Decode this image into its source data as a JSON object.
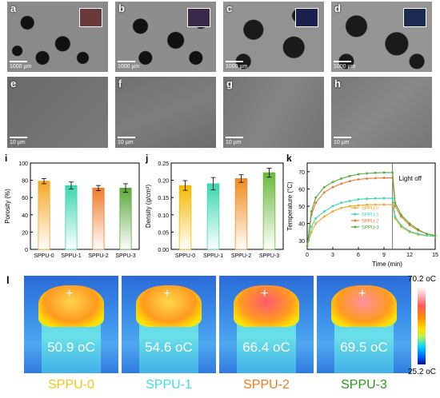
{
  "sem_panels": [
    {
      "label": "a",
      "scale": "1000 µm",
      "inset_color": "#6a3a3a"
    },
    {
      "label": "b",
      "scale": "1000 µm",
      "inset_color": "#3a2a4a"
    },
    {
      "label": "c",
      "scale": "1000 µm",
      "inset_color": "#1a2050"
    },
    {
      "label": "d",
      "scale": "1000 µm",
      "inset_color": "#1a2a50"
    },
    {
      "label": "e",
      "scale": "10 µm"
    },
    {
      "label": "f",
      "scale": "10 µm"
    },
    {
      "label": "g",
      "scale": "10 µm"
    },
    {
      "label": "h",
      "scale": "10 µm"
    }
  ],
  "panel_labels": {
    "i": "i",
    "j": "j",
    "k": "k",
    "l": "l"
  },
  "chart_data": [
    {
      "type": "bar",
      "panel": "i",
      "categories": [
        "SPPU-0",
        "SPPU-1",
        "SPPU-2",
        "SPPU-3"
      ],
      "values": [
        79,
        74,
        71,
        71
      ],
      "errors": [
        3,
        4,
        3,
        5
      ],
      "colors": [
        "#f5a623",
        "#3ad6b0",
        "#f07a2a",
        "#5aa83a"
      ],
      "ylabel": "Porosity (%)",
      "ylim": [
        0,
        100
      ],
      "yticks": [
        "0",
        "20",
        "40",
        "60",
        "80",
        "100"
      ]
    },
    {
      "type": "bar",
      "panel": "j",
      "categories": [
        "SPPU-0",
        "SPPU-1",
        "SPPU-2",
        "SPPU-3"
      ],
      "values": [
        0.185,
        0.19,
        0.205,
        0.222
      ],
      "errors": [
        0.014,
        0.018,
        0.011,
        0.013
      ],
      "colors": [
        "#f5b800",
        "#3ad6b0",
        "#f08a1a",
        "#6ab83a"
      ],
      "ylabel": "Density (g/cm³)",
      "ylim": [
        0,
        0.25
      ],
      "yticks": [
        "0.00",
        "0.05",
        "0.10",
        "0.15",
        "0.20",
        "0.25"
      ]
    },
    {
      "type": "line",
      "panel": "k",
      "xlabel": "Time (min)",
      "ylabel": "Temperature (°C)",
      "xlim": [
        0,
        15
      ],
      "ylim": [
        25,
        75
      ],
      "xticks": [
        "0",
        "3",
        "6",
        "9",
        "12",
        "15"
      ],
      "yticks": [
        "30",
        "40",
        "50",
        "60",
        "70"
      ],
      "annotation": "Light off",
      "light_off_x": 10,
      "series": [
        {
          "name": "SPPU-0",
          "color": "#f5a623",
          "points": [
            [
              0,
              27
            ],
            [
              0.5,
              35
            ],
            [
              1,
              40
            ],
            [
              2,
              44
            ],
            [
              3,
              47
            ],
            [
              4,
              49
            ],
            [
              5,
              50
            ],
            [
              6,
              50.5
            ],
            [
              7,
              50.8
            ],
            [
              8,
              50.9
            ],
            [
              9,
              50.9
            ],
            [
              10,
              50.9
            ],
            [
              10.3,
              43
            ],
            [
              11,
              38
            ],
            [
              12,
              35
            ],
            [
              13,
              33.5
            ],
            [
              14,
              33
            ],
            [
              15,
              32.5
            ]
          ]
        },
        {
          "name": "SPPU-1",
          "color": "#3ad6b0",
          "points": [
            [
              0,
              27
            ],
            [
              0.5,
              38
            ],
            [
              1,
              43
            ],
            [
              2,
              47
            ],
            [
              3,
              50
            ],
            [
              4,
              52
            ],
            [
              5,
              53
            ],
            [
              6,
              54
            ],
            [
              7,
              54.3
            ],
            [
              8,
              54.5
            ],
            [
              9,
              54.6
            ],
            [
              10,
              54.6
            ],
            [
              10.3,
              44
            ],
            [
              11,
              39
            ],
            [
              12,
              35.5
            ],
            [
              13,
              34
            ],
            [
              14,
              33
            ],
            [
              15,
              32.5
            ]
          ]
        },
        {
          "name": "SPPU-2",
          "color": "#f07a2a",
          "points": [
            [
              0,
              27
            ],
            [
              0.5,
              45
            ],
            [
              1,
              52
            ],
            [
              2,
              58
            ],
            [
              3,
              61
            ],
            [
              4,
              63
            ],
            [
              5,
              64.5
            ],
            [
              6,
              65.5
            ],
            [
              7,
              66
            ],
            [
              8,
              66.2
            ],
            [
              9,
              66.4
            ],
            [
              10,
              66.4
            ],
            [
              10.3,
              50
            ],
            [
              11,
              44
            ],
            [
              12,
              39
            ],
            [
              13,
              36
            ],
            [
              14,
              34
            ],
            [
              15,
              33
            ]
          ]
        },
        {
          "name": "SPPU-3",
          "color": "#5aa83a",
          "points": [
            [
              0,
              27
            ],
            [
              0.5,
              47
            ],
            [
              1,
              55
            ],
            [
              2,
              61
            ],
            [
              3,
              64
            ],
            [
              4,
              66
            ],
            [
              5,
              67.5
            ],
            [
              6,
              68.5
            ],
            [
              7,
              69
            ],
            [
              8,
              69.3
            ],
            [
              9,
              69.5
            ],
            [
              10,
              69.5
            ],
            [
              10.3,
              52
            ],
            [
              11,
              45
            ],
            [
              12,
              40
            ],
            [
              13,
              36.5
            ],
            [
              14,
              34
            ],
            [
              15,
              33
            ]
          ]
        }
      ]
    }
  ],
  "ir_panels": [
    {
      "temp": "50.9 oC",
      "label": "SPPU-0",
      "label_color": "#f5c518",
      "core": "#ffd24a"
    },
    {
      "temp": "54.6 oC",
      "label": "SPPU-1",
      "label_color": "#3ee0e0",
      "core": "#ffd84a"
    },
    {
      "temp": "66.4 oC",
      "label": "SPPU-2",
      "label_color": "#f07a1a",
      "core": "#ff5a70"
    },
    {
      "temp": "69.5 oC",
      "label": "SPPU-3",
      "label_color": "#2a9a1a",
      "core": "#ff90a0"
    }
  ],
  "colorbar": {
    "max": "70.2 oC",
    "min": "25.2 oC"
  }
}
